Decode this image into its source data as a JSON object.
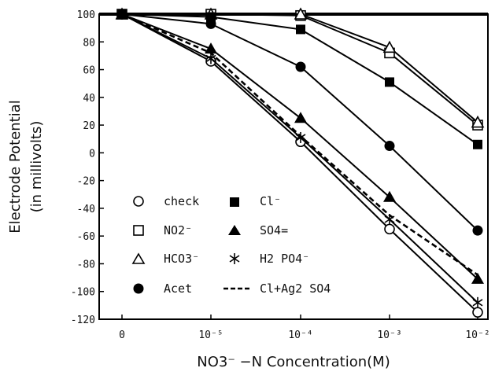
{
  "chart_data": {
    "type": "line",
    "xlabel": "NO3⁻ −N Concentration(M)",
    "ylabel_line1": "Electrode Potential",
    "ylabel_line2": "(in millivolts)",
    "categories": [
      "0",
      "10⁻⁵",
      "10⁻⁴",
      "10⁻³",
      "10⁻²"
    ],
    "ylim": [
      -120,
      100
    ],
    "yticks": [
      100,
      80,
      60,
      40,
      20,
      0,
      -20,
      -40,
      -60,
      -80,
      -100,
      -120
    ],
    "grid": false,
    "legend_position": "bottom-left",
    "series": [
      {
        "name": "check",
        "marker": "circle-open",
        "dashed": false,
        "values": [
          100,
          66,
          8,
          -55,
          -115
        ]
      },
      {
        "name": "NO2⁻",
        "marker": "square-open",
        "dashed": false,
        "values": [
          100,
          100,
          99,
          72,
          20
        ]
      },
      {
        "name": "HCO3⁻",
        "marker": "triangle-open",
        "dashed": false,
        "values": [
          100,
          100,
          100,
          76,
          22
        ]
      },
      {
        "name": "Acet",
        "marker": "circle-filled",
        "dashed": false,
        "values": [
          100,
          93,
          62,
          5,
          -56
        ]
      },
      {
        "name": "Cl⁻",
        "marker": "square-filled",
        "dashed": false,
        "values": [
          100,
          98,
          89,
          51,
          6
        ]
      },
      {
        "name": "SO4=",
        "marker": "triangle-filled",
        "dashed": false,
        "values": [
          100,
          75,
          25,
          -32,
          -91
        ]
      },
      {
        "name": "H2 PO4⁻",
        "marker": "asterisk",
        "dashed": false,
        "values": [
          100,
          68,
          11,
          -48,
          -108
        ]
      },
      {
        "name": "Cl+Ag2 SO4",
        "marker": "none",
        "dashed": true,
        "values": [
          100,
          72,
          12,
          -45,
          -88
        ]
      }
    ]
  },
  "legend": {
    "check": "check",
    "no2": "NO2⁻",
    "hco3": "HCO3⁻",
    "acet": "Acet",
    "cl": "Cl⁻",
    "so4": "SO4=",
    "h2po4": "H2 PO4⁻",
    "clag": "Cl+Ag2 SO4"
  }
}
